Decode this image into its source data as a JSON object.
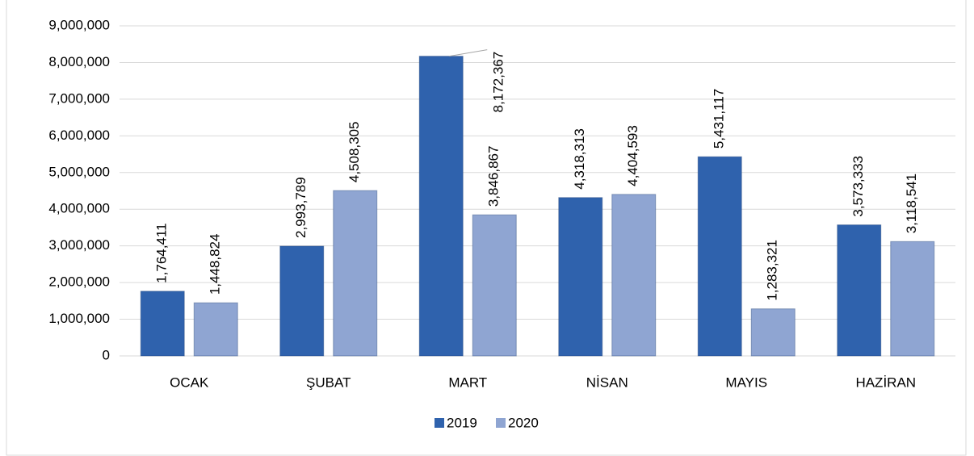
{
  "chart_data": {
    "type": "bar",
    "categories": [
      "OCAK",
      "ŞUBAT",
      "MART",
      "NİSAN",
      "MAYIS",
      "HAZİRAN"
    ],
    "series": [
      {
        "name": "2019",
        "color": "#2f62ad",
        "values": [
          1764411,
          2993789,
          8172367,
          4318313,
          5431117,
          3573333
        ],
        "value_labels": [
          "1,764,411",
          "2,993,789",
          "8,172,367",
          "4,318,313",
          "5,431,117",
          "3,573,333"
        ]
      },
      {
        "name": "2020",
        "color": "#8fa5d2",
        "values": [
          1448824,
          4508305,
          3846867,
          4404593,
          1283321,
          3118541
        ],
        "value_labels": [
          "1,448,824",
          "4,508,305",
          "3,846,867",
          "4,404,593",
          "1,283,321",
          "3,118,541"
        ]
      }
    ],
    "ylim": [
      0,
      9000000
    ],
    "yticks": [
      0,
      {
        "value": 1000000,
        "label": "1,000,000"
      },
      {
        "value": 2000000,
        "label": "2,000,000"
      },
      {
        "value": 3000000,
        "label": "3,000,000"
      },
      {
        "value": 4000000,
        "label": "4,000,000"
      },
      {
        "value": 5000000,
        "label": "5,000,000"
      },
      {
        "value": 6000000,
        "label": "6,000,000"
      },
      {
        "value": 7000000,
        "label": "7,000,000"
      },
      {
        "value": 8000000,
        "label": "8,000,000"
      },
      {
        "value": 9000000,
        "label": "9,000,000"
      }
    ],
    "grid": true,
    "legend": "bottom"
  }
}
